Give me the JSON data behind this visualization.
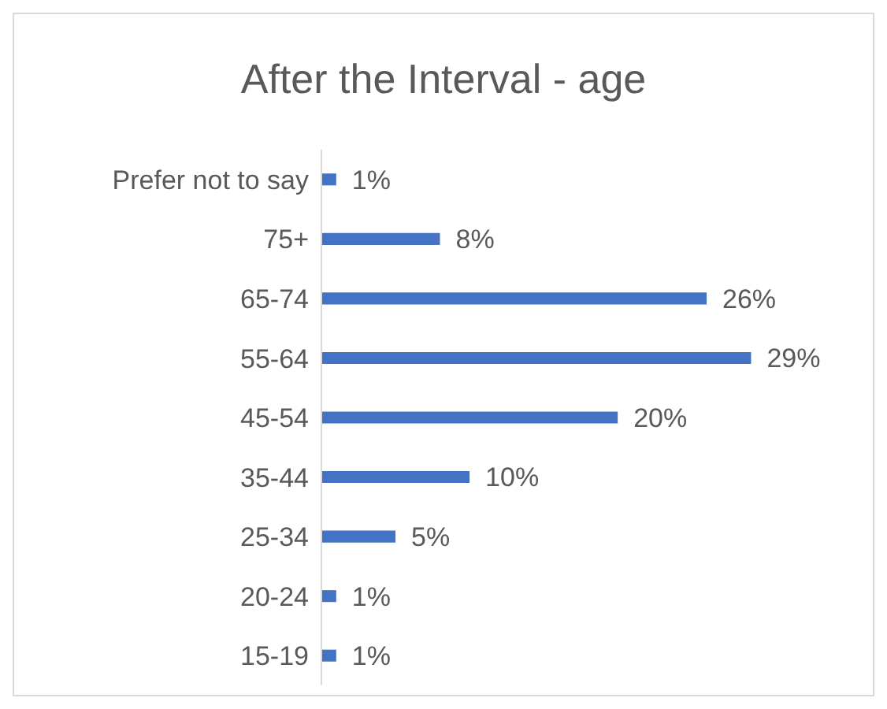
{
  "chart_data": {
    "type": "bar",
    "orientation": "horizontal",
    "title": "After the Interval - age",
    "categories": [
      "Prefer not to say",
      "75+",
      "65-74",
      "55-64",
      "45-54",
      "35-44",
      "25-34",
      "20-24",
      "15-19"
    ],
    "values": [
      1,
      8,
      26,
      29,
      20,
      10,
      5,
      1,
      1
    ],
    "value_labels": [
      "1%",
      "8%",
      "26%",
      "29%",
      "20%",
      "10%",
      "5%",
      "1%",
      "1%"
    ],
    "color": "#4472c4"
  }
}
